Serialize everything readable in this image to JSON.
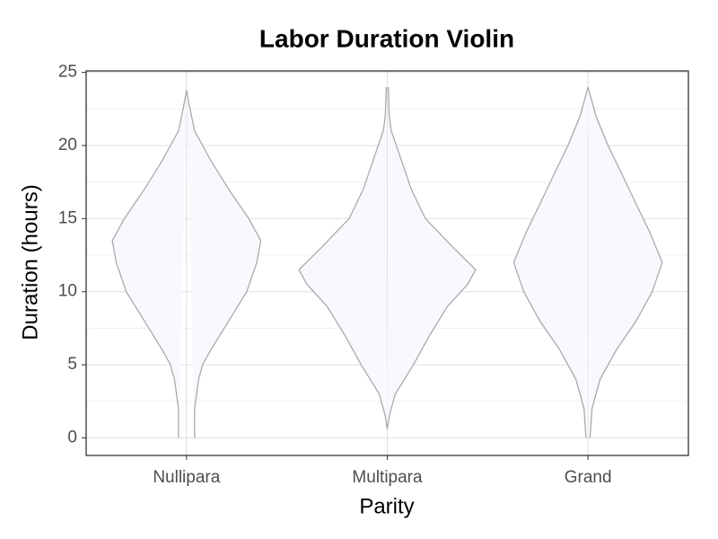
{
  "chart_data": {
    "type": "violin",
    "title": "Labor Duration Violin",
    "x_label": "Parity",
    "y_label": "Duration (hours)",
    "categories": [
      "Nullipara",
      "Multipara",
      "Grand"
    ],
    "fill": "#f8f9fe",
    "stroke": "#aaaaaa",
    "series": [
      {
        "name": "Nullipara",
        "y": [
          0,
          2,
          4,
          5,
          6,
          8,
          10,
          12,
          13.5,
          15,
          17,
          19,
          21,
          23,
          23.8
        ],
        "width": [
          0.04,
          0.04,
          0.06,
          0.08,
          0.12,
          0.21,
          0.3,
          0.35,
          0.37,
          0.31,
          0.21,
          0.12,
          0.04,
          0.01,
          0
        ]
      },
      {
        "name": "Multipara",
        "y": [
          0.6,
          1.5,
          3,
          5,
          7,
          9,
          10.5,
          11.5,
          13,
          15,
          17,
          19,
          21,
          22,
          24
        ],
        "width": [
          0,
          0.01,
          0.04,
          0.13,
          0.21,
          0.3,
          0.4,
          0.44,
          0.33,
          0.19,
          0.12,
          0.07,
          0.02,
          0.01,
          0.005
        ]
      },
      {
        "name": "Grand",
        "y": [
          0,
          2,
          4,
          6,
          8,
          10,
          12,
          14,
          16,
          18,
          20,
          22,
          24
        ],
        "width": [
          0.01,
          0.02,
          0.06,
          0.14,
          0.24,
          0.32,
          0.37,
          0.31,
          0.24,
          0.17,
          0.1,
          0.04,
          0
        ]
      }
    ],
    "ylim": [
      -1.2,
      25.1
    ],
    "yticks": [
      0,
      5,
      10,
      15,
      20,
      25
    ],
    "minor_yticks": [
      2.5,
      7.5,
      12.5,
      17.5,
      22.5
    ],
    "grid": true
  }
}
